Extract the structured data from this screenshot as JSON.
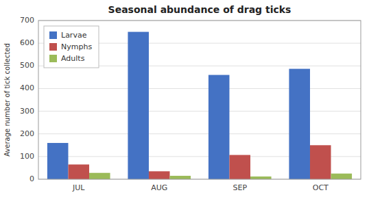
{
  "chart_data": {
    "type": "bar",
    "title": "Seasonal abundance of drag ticks",
    "ylabel": "Average number of tick collected",
    "categories": [
      "JUL",
      "AUG",
      "SEP",
      "OCT"
    ],
    "series": [
      {
        "name": "Larvae",
        "color": "#4472C4",
        "values": [
          160,
          650,
          460,
          487
        ]
      },
      {
        "name": "Nymphs",
        "color": "#C0504D",
        "values": [
          65,
          35,
          107,
          150
        ]
      },
      {
        "name": "Adults",
        "color": "#9BBB59",
        "values": [
          28,
          15,
          12,
          25
        ]
      }
    ],
    "ylim": [
      0,
      700
    ],
    "yticks": [
      0,
      100,
      200,
      300,
      400,
      500,
      600,
      700
    ],
    "grid": true,
    "legend": "upper left"
  }
}
